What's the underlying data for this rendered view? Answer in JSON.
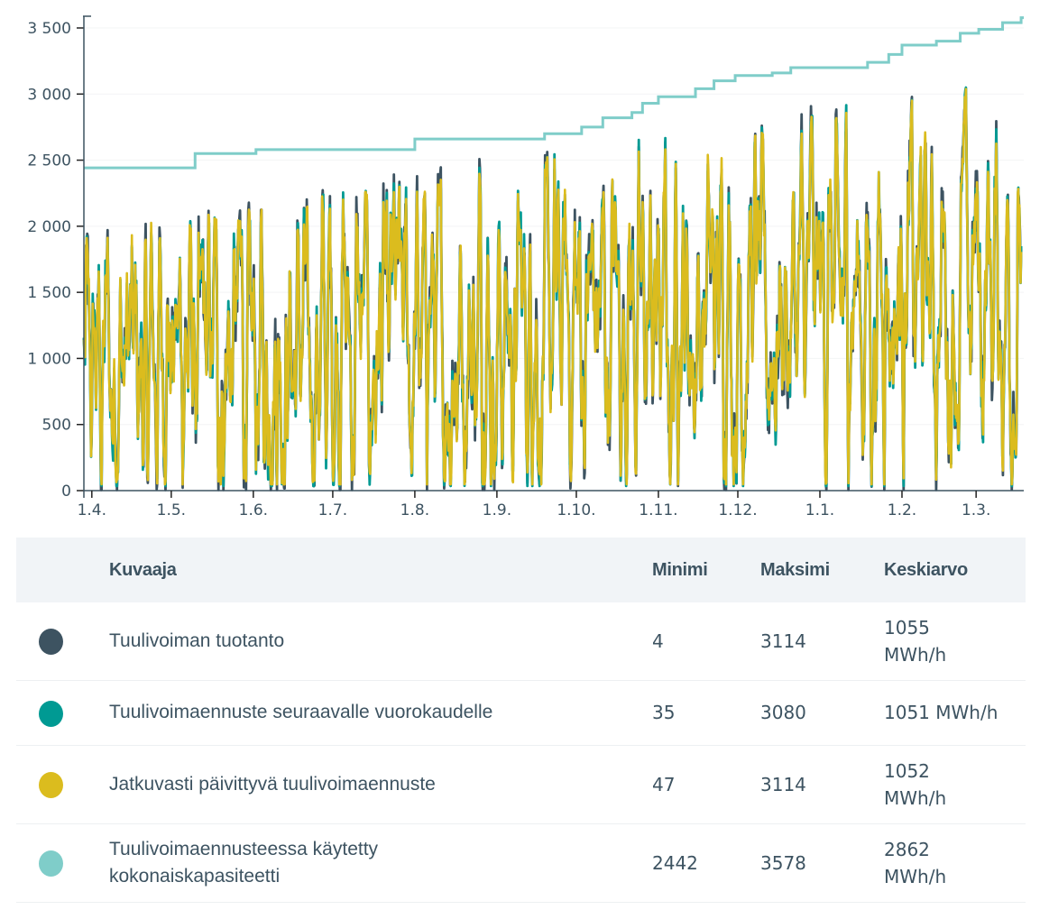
{
  "chart_data": {
    "type": "line",
    "title": "",
    "xlabel": "",
    "ylabel": "",
    "ylim": [
      0,
      3578
    ],
    "y_ticks": [
      {
        "value": 0,
        "label": "0"
      },
      {
        "value": 500,
        "label": "500"
      },
      {
        "value": 1000,
        "label": "1 000"
      },
      {
        "value": 1500,
        "label": "1 500"
      },
      {
        "value": 2000,
        "label": "2 000"
      },
      {
        "value": 2500,
        "label": "2 500"
      },
      {
        "value": 3000,
        "label": "3 000"
      },
      {
        "value": 3500,
        "label": "3 500"
      }
    ],
    "x_range_days": [
      0,
      355
    ],
    "x_ticks": [
      {
        "day": 3,
        "label": "1.4."
      },
      {
        "day": 33,
        "label": "1.5."
      },
      {
        "day": 64,
        "label": "1.6."
      },
      {
        "day": 94,
        "label": "1.7."
      },
      {
        "day": 125,
        "label": "1.8."
      },
      {
        "day": 156,
        "label": "1.9."
      },
      {
        "day": 186,
        "label": "1.10."
      },
      {
        "day": 217,
        "label": "1.11."
      },
      {
        "day": 247,
        "label": "1.12."
      },
      {
        "day": 278,
        "label": "1.1."
      },
      {
        "day": 309,
        "label": "1.2."
      },
      {
        "day": 337,
        "label": "1.3."
      }
    ],
    "grid": true,
    "legend": "table-below",
    "series": [
      {
        "name": "Tuulivoiman tuotanto",
        "color": "#3d5361",
        "min": 4,
        "max": 3114,
        "mean": 1055,
        "shape": "noisy-hourly"
      },
      {
        "name": "Tuulivoimaennuste seuraavalle vuorokaudelle",
        "color": "#009a93",
        "min": 35,
        "max": 3080,
        "mean": 1051,
        "shape": "noisy-hourly"
      },
      {
        "name": "Jatkuvasti päivittyvä tuulivoimaennuste",
        "color": "#dbbc1e",
        "min": 47,
        "max": 3114,
        "mean": 1052,
        "shape": "noisy-hourly"
      },
      {
        "name": "Tuulivoimaennusteessa käytetty kokonaiskapasiteetti",
        "color": "#7fcdc9",
        "min": 2442,
        "max": 3578,
        "mean": 2862,
        "steps": [
          {
            "day": 0,
            "value": 2442
          },
          {
            "day": 42,
            "value": 2550
          },
          {
            "day": 65,
            "value": 2580
          },
          {
            "day": 125,
            "value": 2660
          },
          {
            "day": 174,
            "value": 2700
          },
          {
            "day": 188,
            "value": 2750
          },
          {
            "day": 196,
            "value": 2820
          },
          {
            "day": 207,
            "value": 2860
          },
          {
            "day": 211,
            "value": 2930
          },
          {
            "day": 217,
            "value": 2980
          },
          {
            "day": 231,
            "value": 3040
          },
          {
            "day": 238,
            "value": 3100
          },
          {
            "day": 246,
            "value": 3140
          },
          {
            "day": 260,
            "value": 3160
          },
          {
            "day": 267,
            "value": 3200
          },
          {
            "day": 296,
            "value": 3240
          },
          {
            "day": 304,
            "value": 3300
          },
          {
            "day": 309,
            "value": 3370
          },
          {
            "day": 322,
            "value": 3400
          },
          {
            "day": 331,
            "value": 3460
          },
          {
            "day": 338,
            "value": 3490
          },
          {
            "day": 347,
            "value": 3540
          },
          {
            "day": 354,
            "value": 3578
          }
        ]
      }
    ]
  },
  "table": {
    "headers": {
      "series": "Kuvaaja",
      "min": "Minimi",
      "max": "Maksimi",
      "mean": "Keskiarvo"
    },
    "rows": [
      {
        "name": "Tuulivoiman tuotanto",
        "color": "#3d5361",
        "min": "4",
        "max": "3114",
        "mean": "1055 MWh/h"
      },
      {
        "name": "Tuulivoimaennuste seuraavalle vuorokaudelle",
        "color": "#009a93",
        "min": "35",
        "max": "3080",
        "mean": "1051 MWh/h"
      },
      {
        "name": "Jatkuvasti päivittyvä tuulivoimaennuste",
        "color": "#dbbc1e",
        "min": "47",
        "max": "3114",
        "mean": "1052 MWh/h"
      },
      {
        "name": "Tuulivoimaennusteessa käytetty kokonaiskapasiteetti",
        "color": "#7fcdc9",
        "min": "2442",
        "max": "3578",
        "mean": "2862 MWh/h"
      }
    ]
  }
}
